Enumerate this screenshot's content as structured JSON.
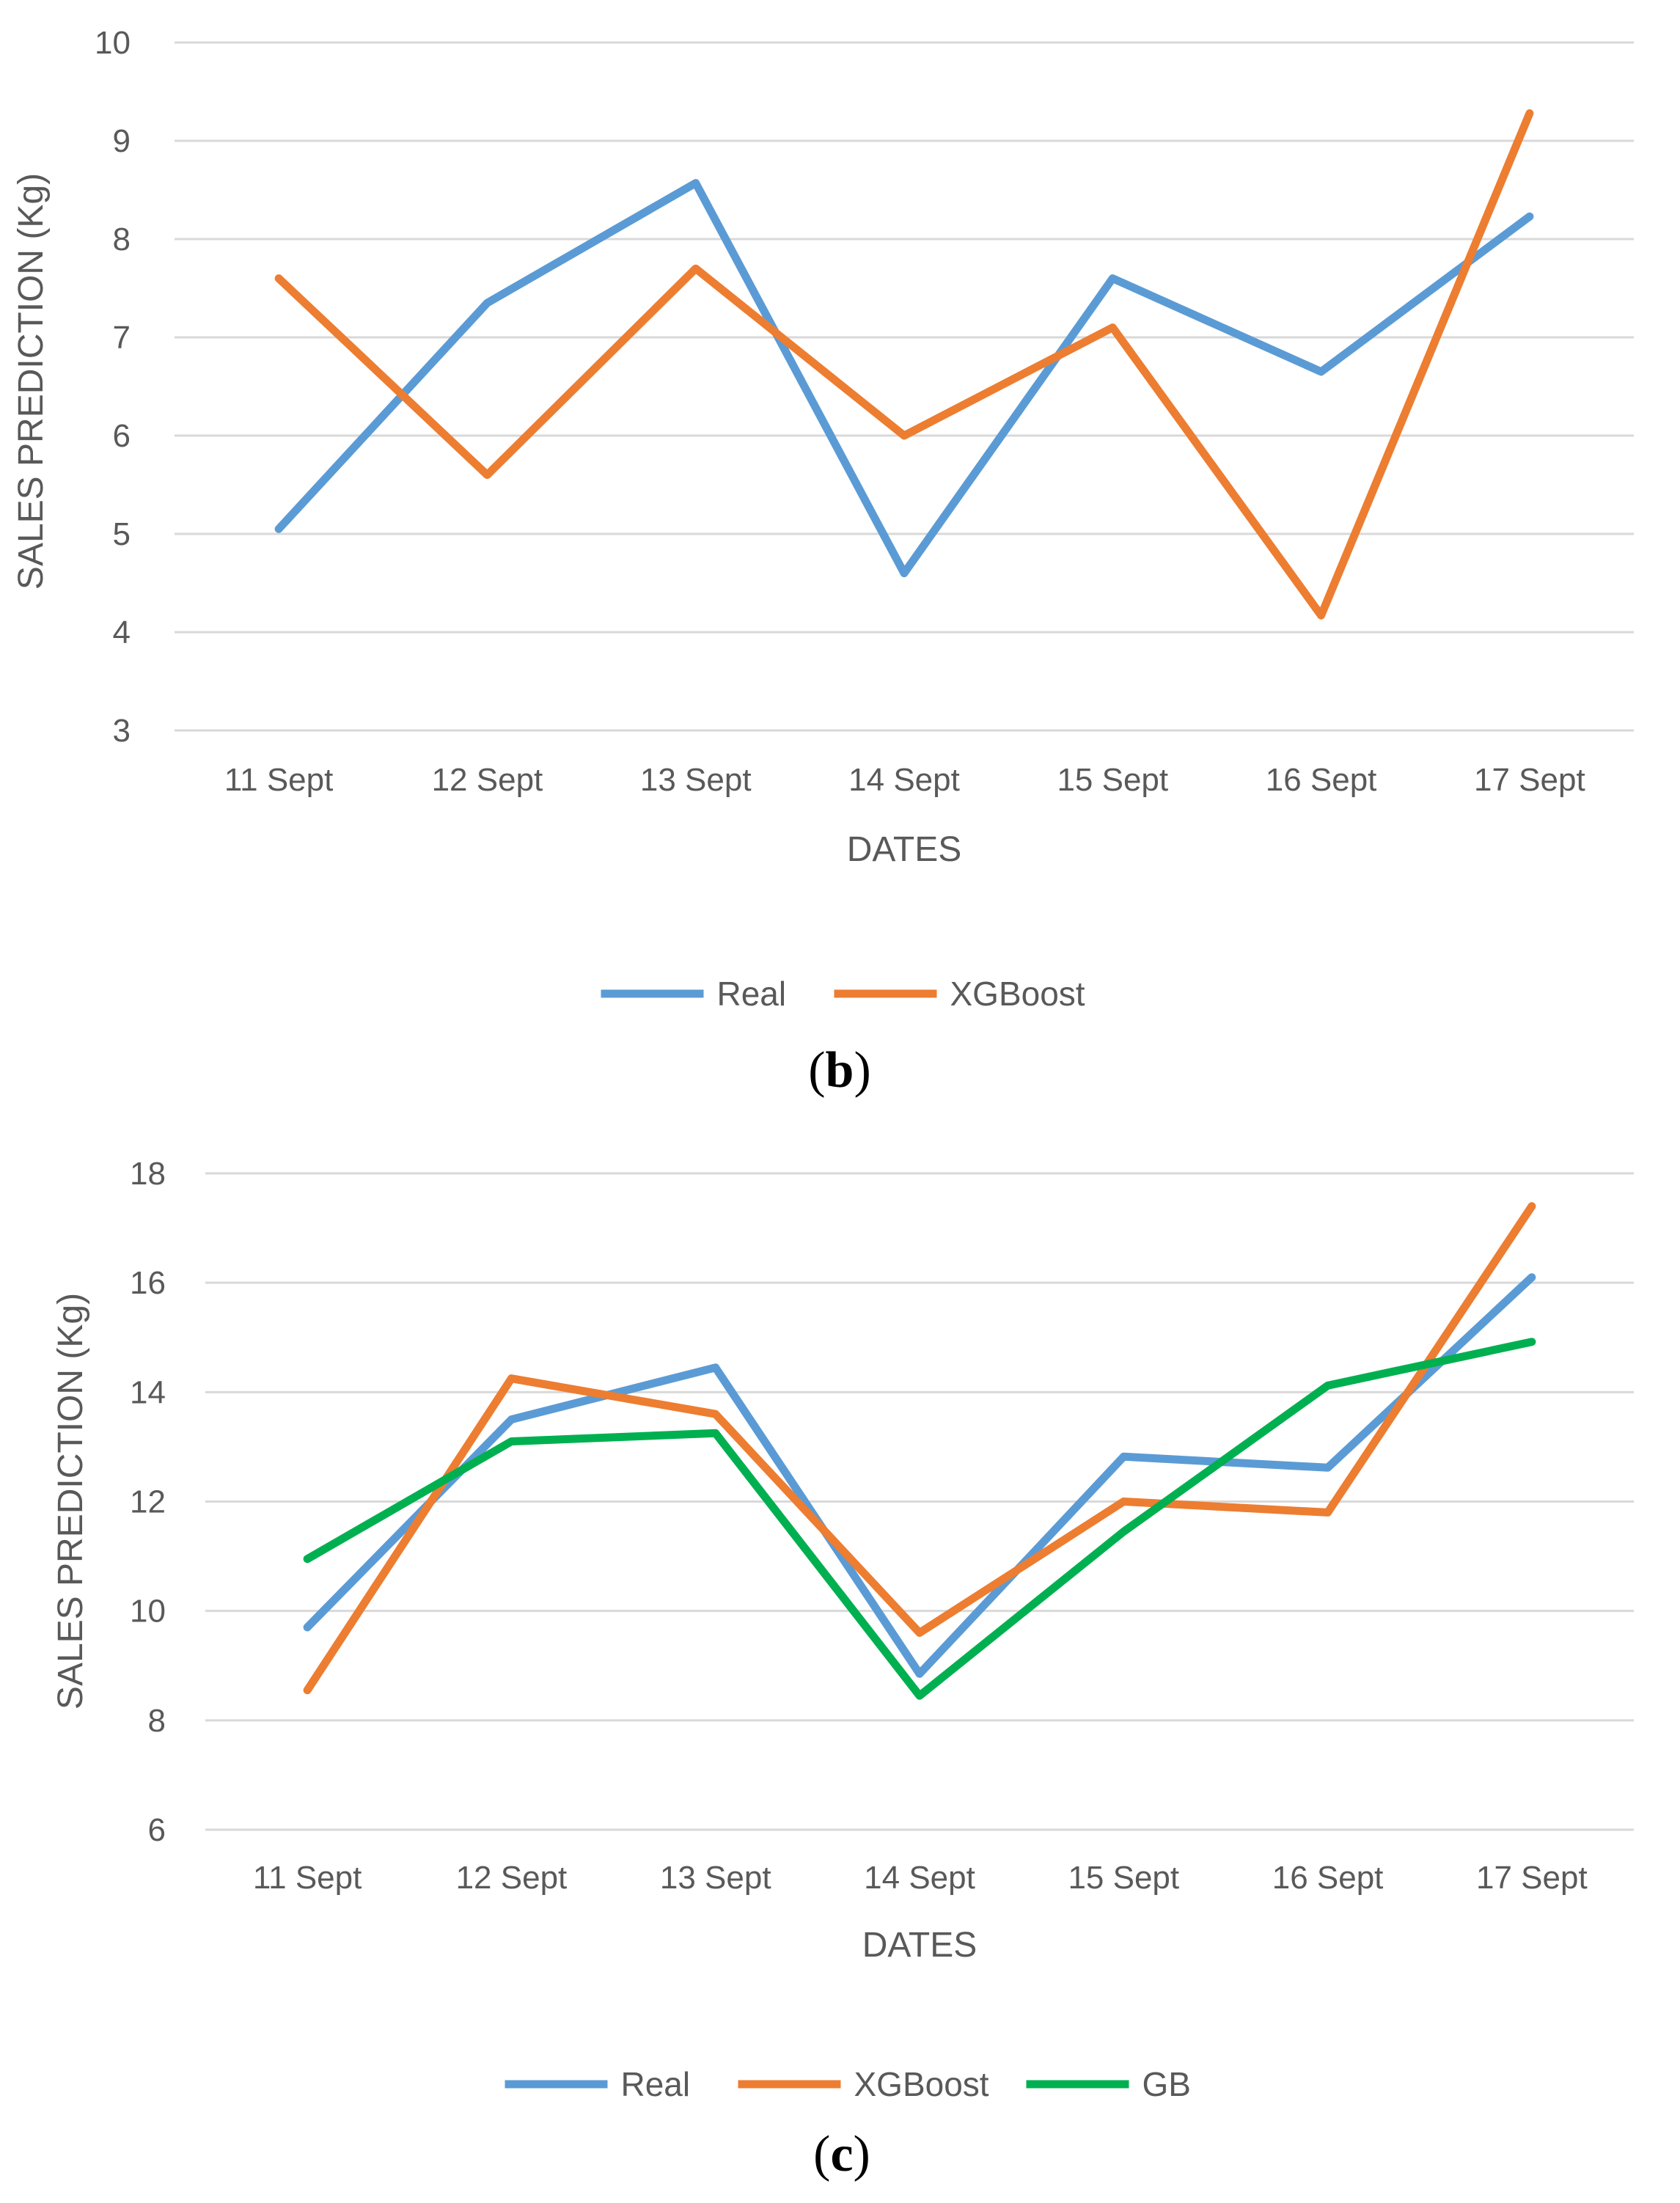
{
  "chart_data": [
    {
      "type": "line",
      "panel": "b",
      "title": "",
      "xlabel": "DATES",
      "ylabel": "SALES PREDICTION (Kg)",
      "categories": [
        "11 Sept",
        "12 Sept",
        "13 Sept",
        "14 Sept",
        "15 Sept",
        "16 Sept",
        "17 Sept"
      ],
      "ylim": [
        3,
        10
      ],
      "yticks": [
        3,
        4,
        5,
        6,
        7,
        8,
        9,
        10
      ],
      "grid": true,
      "legend": "bottom-center",
      "series": [
        {
          "name": "Real",
          "color": "#5b9bd5",
          "values": [
            5.05,
            7.35,
            8.57,
            4.6,
            7.6,
            6.65,
            8.23
          ]
        },
        {
          "name": "XGBoost",
          "color": "#ed7d31",
          "values": [
            7.6,
            5.6,
            7.7,
            6.0,
            7.1,
            4.17,
            9.28
          ]
        }
      ]
    },
    {
      "type": "line",
      "panel": "c",
      "title": "",
      "xlabel": "DATES",
      "ylabel": "SALES PREDICTION (Kg)",
      "categories": [
        "11 Sept",
        "12 Sept",
        "13 Sept",
        "14 Sept",
        "15 Sept",
        "16 Sept",
        "17 Sept"
      ],
      "ylim": [
        6,
        18
      ],
      "yticks": [
        6,
        8,
        10,
        12,
        14,
        16,
        18
      ],
      "grid": true,
      "legend": "bottom-center",
      "series": [
        {
          "name": "Real",
          "color": "#5b9bd5",
          "values": [
            9.7,
            13.5,
            14.45,
            8.85,
            12.82,
            12.62,
            16.1
          ]
        },
        {
          "name": "XGBoost",
          "color": "#ed7d31",
          "values": [
            8.55,
            14.25,
            13.6,
            9.6,
            12.0,
            11.8,
            17.4
          ]
        },
        {
          "name": "GB",
          "color": "#00b050",
          "values": [
            10.95,
            13.1,
            13.25,
            8.45,
            11.45,
            14.12,
            14.92
          ]
        }
      ]
    }
  ]
}
